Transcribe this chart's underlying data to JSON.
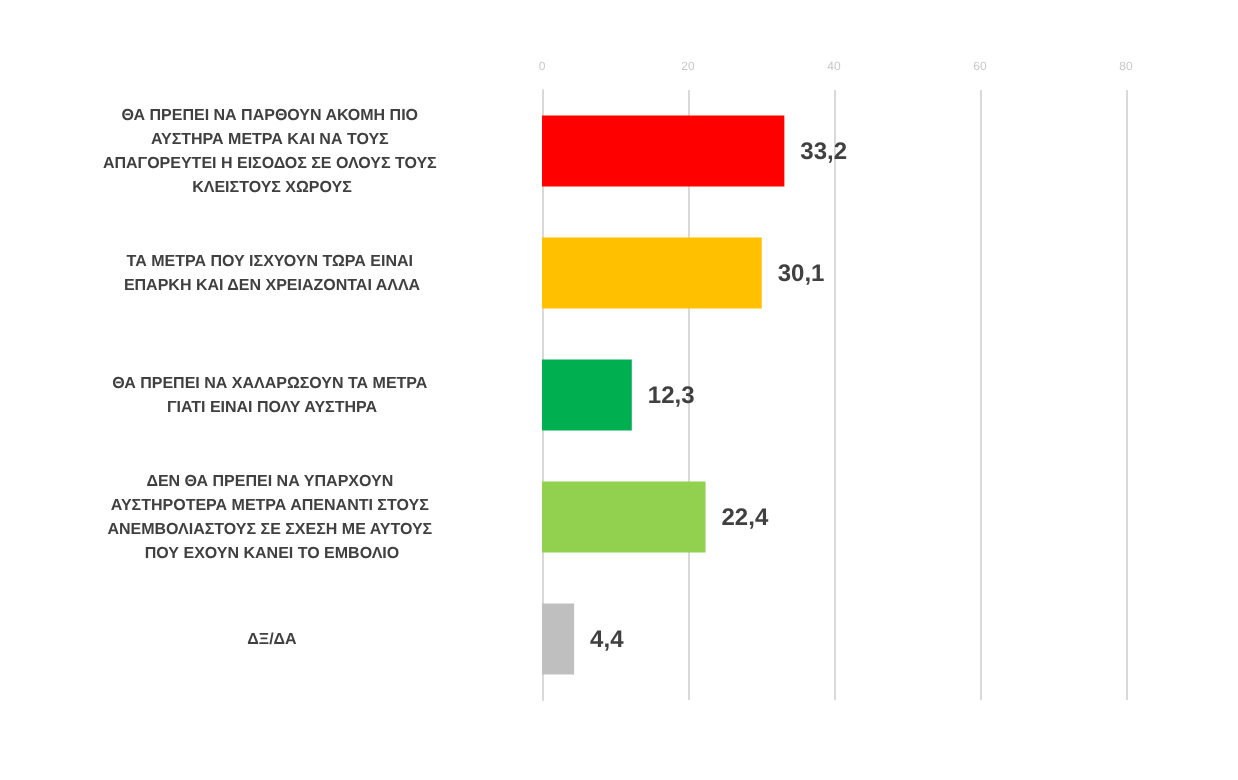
{
  "chart_data": {
    "type": "bar",
    "orientation": "horizontal",
    "categories": [
      "ΘΑ ΠΡΕΠΕΙ ΝΑ ΠΑΡΘΟΥΝ ΑΚΟΜΗ ΠΙΟ ΑΥΣΤΗΡΑ ΜΕΤΡΑ ΚΑΙ ΝΑ ΤΟΥΣ ΑΠΑΓΟΡΕΥΤΕΙ Η ΕΙΣΟΔΟΣ ΣΕ ΟΛΟΥΣ ΤΟΥΣ ΚΛΕΙΣΤΟΥΣ ΧΩΡΟΥΣ",
      "ΤΑ ΜΕΤΡΑ ΠΟΥ ΙΣΧΥΟΥΝ ΤΩΡΑ ΕΙΝΑΙ ΕΠΑΡΚΗ ΚΑΙ ΔΕΝ ΧΡΕΙΑΖΟΝΤΑΙ ΑΛΛΑ",
      "ΘΑ ΠΡΕΠΕΙ ΝΑ ΧΑΛΑΡΩΣΟΥΝ ΤΑ ΜΕΤΡΑ ΓΙΑΤΙ ΕΙΝΑΙ ΠΟΛΥ ΑΥΣΤΗΡΑ",
      "ΔΕΝ ΘΑ ΠΡΕΠΕΙ ΝΑ ΥΠΑΡΧΟΥΝ ΑΥΣΤΗΡΟΤΕΡΑ ΜΕΤΡΑ ΑΠΕΝΑΝΤΙ ΣΤΟΥΣ ΑΝΕΜΒΟΛΙΑΣΤΟΥΣ ΣΕ ΣΧΕΣΗ ΜΕ ΑΥΤΟΥΣ ΠΟΥ ΕΧΟΥΝ ΚΑΝΕΙ ΤΟ ΕΜΒΟΛΙΟ",
      "ΔΞ/ΔΑ"
    ],
    "values": [
      33.2,
      30.1,
      12.3,
      22.4,
      4.4
    ],
    "value_labels": [
      "33,2",
      "30,1",
      "12,3",
      "22,4",
      "4,4"
    ],
    "colors": [
      "#ff0000",
      "#ffc000",
      "#00b050",
      "#92d050",
      "#bfbfbf"
    ],
    "xlim": [
      0,
      80
    ],
    "xticks": [
      0,
      20,
      40,
      60,
      80
    ],
    "grid": "x"
  }
}
